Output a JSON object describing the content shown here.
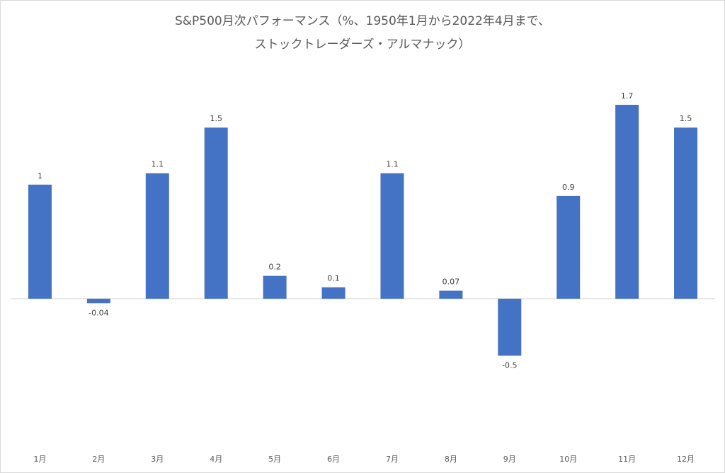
{
  "chart_data": {
    "type": "bar",
    "title_lines": [
      "S&P500月次パフォーマンス（%、1950年1月から2022年4月まで、",
      "ストックトレーダーズ・アルマナック）"
    ],
    "categories": [
      "1月",
      "2月",
      "3月",
      "4月",
      "5月",
      "6月",
      "7月",
      "8月",
      "9月",
      "10月",
      "11月",
      "12月"
    ],
    "values": [
      1,
      -0.04,
      1.1,
      1.5,
      0.2,
      0.1,
      1.1,
      0.07,
      -0.5,
      0.9,
      1.7,
      1.5
    ],
    "value_labels": [
      "1",
      "-0.04",
      "1.1",
      "1.5",
      "0.2",
      "0.1",
      "1.1",
      "0.07",
      "-0.5",
      "0.9",
      "1.7",
      "1.5"
    ],
    "bar_color": "#4472C4",
    "xlabel": "",
    "ylabel": "",
    "ylim": [
      -1.1,
      1.7
    ],
    "grid": false,
    "legend": "none"
  }
}
